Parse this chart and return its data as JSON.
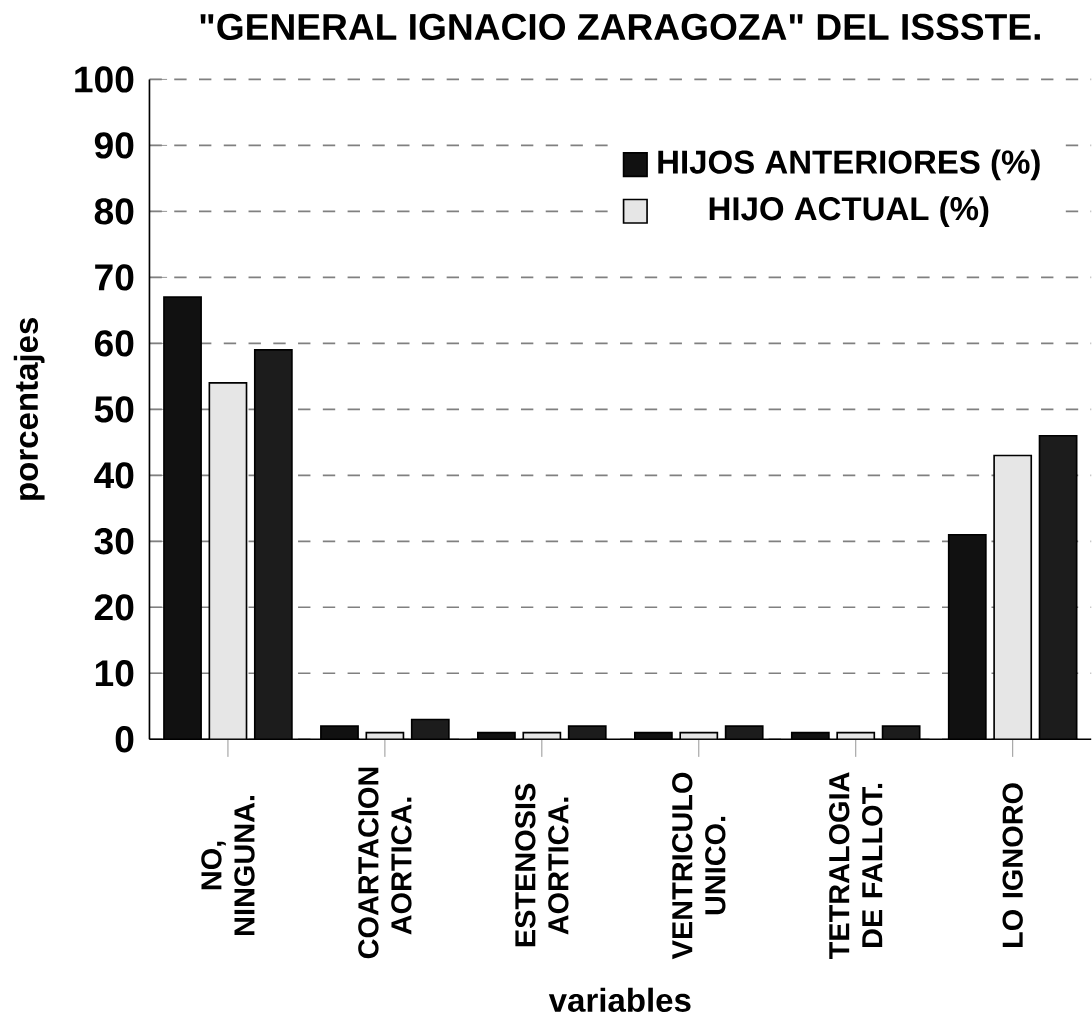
{
  "chart_data": {
    "type": "bar",
    "title": "\"GENERAL IGNACIO ZARAGOZA\" DEL ISSSTE.",
    "xlabel": "variables",
    "ylabel": "porcentajes",
    "categories": [
      "NO, NINGUNA.",
      "COARTACION AORTICA.",
      "ESTENOSIS AORTICA.",
      "VENTRICULO UNICO.",
      "TETRALOGIA DE FALLOT.",
      "LO IGNORO"
    ],
    "series": [
      {
        "name": "HIJOS ANTERIORES (%)",
        "color": "#111111",
        "values": [
          67,
          2,
          1,
          1,
          1,
          31
        ]
      },
      {
        "name": "HIJO ACTUAL (%)",
        "color": "#e6e6e6",
        "values": [
          54,
          1,
          1,
          1,
          1,
          43
        ]
      },
      {
        "color": "#1c1c1c",
        "values": [
          59,
          3,
          2,
          2,
          2,
          46
        ]
      }
    ],
    "ylim": [
      0,
      100
    ],
    "yticks": [
      0,
      10,
      20,
      30,
      40,
      50,
      60,
      70,
      80,
      90,
      100
    ],
    "grid": "y",
    "legend": "top right"
  }
}
